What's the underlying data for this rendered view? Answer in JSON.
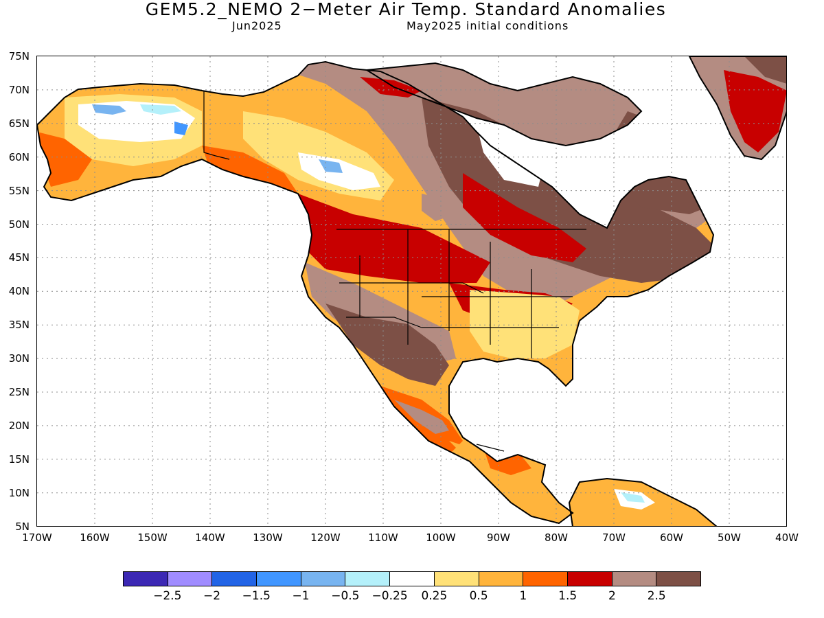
{
  "header": {
    "title": "GEM5.2_NEMO 2−Meter Air Temp. Standard Anomalies",
    "valid_month": "Jun2025",
    "init": "May2025 initial conditions"
  },
  "axes": {
    "lat_labels": [
      "75N",
      "70N",
      "65N",
      "60N",
      "55N",
      "50N",
      "45N",
      "40N",
      "35N",
      "30N",
      "25N",
      "20N",
      "15N",
      "10N",
      "5N"
    ],
    "lon_labels": [
      "170W",
      "160W",
      "150W",
      "140W",
      "130W",
      "120W",
      "110W",
      "100W",
      "90W",
      "80W",
      "70W",
      "60W",
      "50W",
      "40W"
    ]
  },
  "map": {
    "region": "North America",
    "projection": "lat-lon",
    "lat_range": [
      5,
      75
    ],
    "lon_range": [
      -170,
      -40
    ],
    "grid": "dotted",
    "variable": "2-meter air temperature standard anomaly",
    "regions": [
      {
        "area": "Alaska interior",
        "category": "-1 to -0.25"
      },
      {
        "area": "Alaska coast",
        "category": "0.5 to 1.5"
      },
      {
        "area": "Northwest Canada",
        "category": "0.25 to 1.5"
      },
      {
        "area": "Central Canada / Hudson Bay",
        "category": "2 to >2.5"
      },
      {
        "area": "Eastern Canada",
        "category": ">2.5"
      },
      {
        "area": "US Southwest",
        "category": ">2.5"
      },
      {
        "area": "US Northern Plains",
        "category": "1.5 to 2"
      },
      {
        "area": "US Southeast",
        "category": "0.25 to 1"
      },
      {
        "area": "Mexico",
        "category": "1.5 to >2.5"
      },
      {
        "area": "Central America",
        "category": "0.5 to 1.5"
      },
      {
        "area": "Greenland south",
        "category": "1.5 to >2.5"
      },
      {
        "area": "Northern South America",
        "category": "-0.5 to 1"
      }
    ]
  },
  "legend": {
    "colors": [
      "#3c28b4",
      "#a08cff",
      "#2264e6",
      "#4196ff",
      "#78b4f0",
      "#b4f0fa",
      "#ffffff",
      "#ffe178",
      "#ffb43c",
      "#ff6400",
      "#c80000",
      "#b48c82",
      "#7d5046"
    ],
    "labels": [
      "−2.5",
      "−2",
      "−1.5",
      "−1",
      "−0.5",
      "−0.25",
      "0.25",
      "0.5",
      "1",
      "1.5",
      "2",
      "2.5"
    ]
  }
}
